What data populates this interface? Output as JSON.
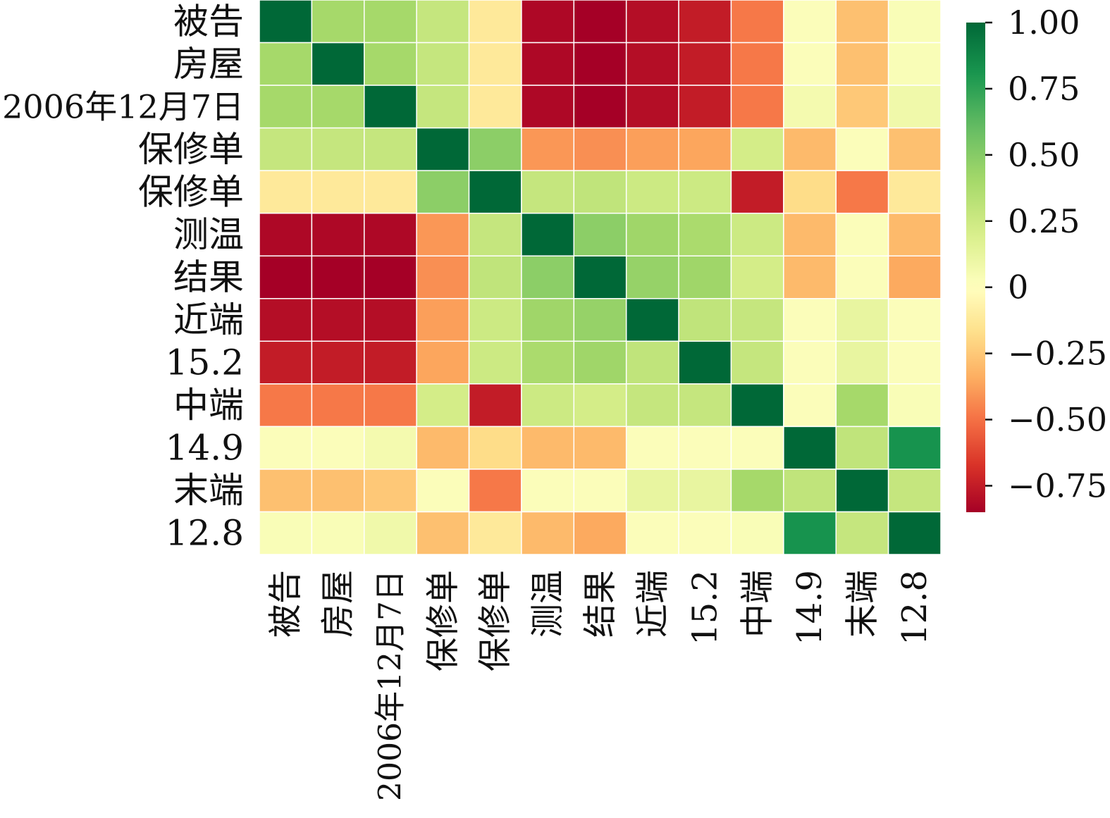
{
  "chart_data": {
    "type": "heatmap",
    "title": "",
    "xlabel": "",
    "ylabel": "",
    "labels": [
      "被告",
      "房屋",
      "2006年12月7日",
      "保修单",
      "保修单",
      "测温",
      "结果",
      "近端",
      "15.2",
      "中端",
      "14.9",
      "末端",
      "12.8"
    ],
    "values": [
      [
        1.0,
        0.4,
        0.4,
        0.28,
        -0.12,
        -0.82,
        -0.85,
        -0.8,
        -0.75,
        -0.48,
        0.02,
        -0.28,
        0.03
      ],
      [
        0.4,
        1.0,
        0.4,
        0.28,
        -0.12,
        -0.82,
        -0.85,
        -0.8,
        -0.75,
        -0.48,
        0.02,
        -0.28,
        0.03
      ],
      [
        0.4,
        0.4,
        1.0,
        0.28,
        -0.12,
        -0.82,
        -0.85,
        -0.8,
        -0.75,
        -0.48,
        0.06,
        -0.25,
        0.08
      ],
      [
        0.28,
        0.28,
        0.28,
        1.0,
        0.48,
        -0.4,
        -0.42,
        -0.38,
        -0.36,
        0.22,
        -0.3,
        0.02,
        -0.28
      ],
      [
        -0.12,
        -0.12,
        -0.12,
        0.48,
        1.0,
        0.28,
        0.3,
        0.25,
        0.25,
        -0.75,
        -0.18,
        -0.48,
        -0.12
      ],
      [
        -0.82,
        -0.82,
        -0.82,
        -0.4,
        0.28,
        1.0,
        0.48,
        0.42,
        0.38,
        0.25,
        -0.3,
        0.02,
        -0.3
      ],
      [
        -0.85,
        -0.85,
        -0.85,
        -0.42,
        0.3,
        0.48,
        1.0,
        0.45,
        0.42,
        0.22,
        -0.3,
        0.02,
        -0.35
      ],
      [
        -0.8,
        -0.8,
        -0.8,
        -0.38,
        0.25,
        0.42,
        0.45,
        1.0,
        0.3,
        0.28,
        0.02,
        0.12,
        0.02
      ],
      [
        -0.75,
        -0.75,
        -0.75,
        -0.36,
        0.25,
        0.38,
        0.42,
        0.3,
        1.0,
        0.28,
        0.02,
        0.12,
        0.02
      ],
      [
        -0.48,
        -0.48,
        -0.48,
        0.22,
        -0.75,
        0.25,
        0.22,
        0.28,
        0.28,
        1.0,
        0.02,
        0.4,
        0.03
      ],
      [
        0.02,
        0.02,
        0.06,
        -0.3,
        -0.18,
        -0.3,
        -0.3,
        0.02,
        0.02,
        0.02,
        1.0,
        0.3,
        0.82
      ],
      [
        -0.28,
        -0.28,
        -0.25,
        0.02,
        -0.48,
        0.02,
        0.02,
        0.12,
        0.12,
        0.4,
        0.3,
        1.0,
        0.28
      ],
      [
        0.03,
        0.03,
        0.08,
        -0.28,
        -0.12,
        -0.3,
        -0.35,
        0.02,
        0.02,
        0.03,
        0.82,
        0.28,
        1.0
      ]
    ],
    "colorbar": {
      "range": [
        -0.85,
        1.0
      ],
      "ticks": [
        1.0,
        0.75,
        0.5,
        0.25,
        0,
        -0.25,
        -0.5,
        -0.75
      ],
      "tick_labels": [
        "1.00",
        "0.75",
        "0.50",
        "0.25",
        "0",
        "−0.25",
        "−0.50",
        "−0.75"
      ],
      "colormap": "RdYlGn",
      "colors": [
        "#a50026",
        "#d73027",
        "#f46d43",
        "#fdae61",
        "#fee08b",
        "#ffffbf",
        "#d9ef8b",
        "#a6d96a",
        "#66bd63",
        "#1a9850",
        "#006837"
      ]
    },
    "grid": false,
    "legend": "colorbar-right"
  }
}
